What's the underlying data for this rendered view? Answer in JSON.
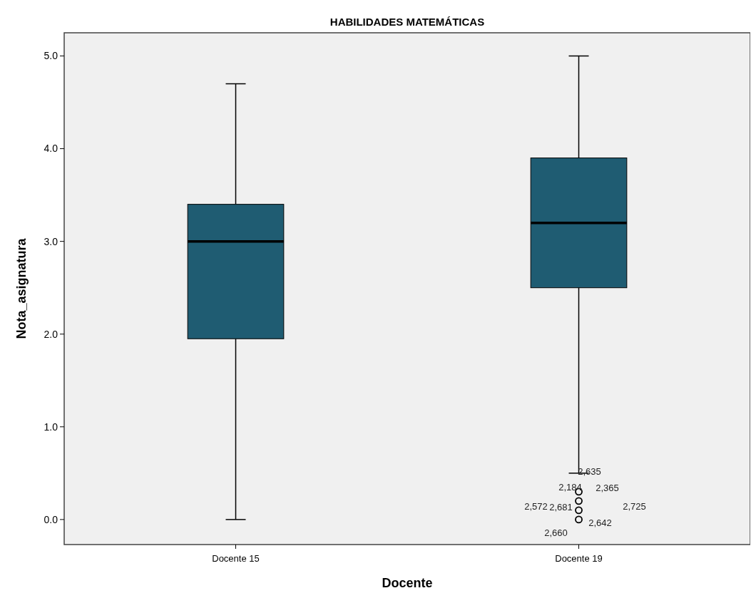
{
  "chart_data": {
    "type": "box",
    "title": "HABILIDADES MATEMÁTICAS",
    "xlabel": "Docente",
    "ylabel": "Nota_asignatura",
    "categories": [
      "Docente 15",
      "Docente 19"
    ],
    "color": "#1f5c72",
    "boxes": [
      {
        "low": 0,
        "q1": 1.95,
        "median": 3.0,
        "q3": 3.4,
        "high": 4.7
      },
      {
        "low": 0.5,
        "q1": 2.5,
        "median": 3.2,
        "q3": 3.9,
        "high": 5.0,
        "outliers": [
          0.3,
          0.2,
          0.1,
          0
        ]
      }
    ],
    "ylim": [
      -0.27,
      5.25
    ],
    "yticks": [
      {
        "value": 0,
        "label": "0.0"
      },
      {
        "value": 1,
        "label": "1.0"
      },
      {
        "value": 2,
        "label": "2.0"
      },
      {
        "value": 3,
        "label": "3.0"
      },
      {
        "value": 4,
        "label": "4.0"
      },
      {
        "value": 5,
        "label": "5.0"
      }
    ],
    "grid": false,
    "annotations": [
      "2,635",
      "2,184",
      "2,365",
      "2,572",
      "2,681",
      "2,725",
      "2,642",
      "2,660"
    ]
  }
}
